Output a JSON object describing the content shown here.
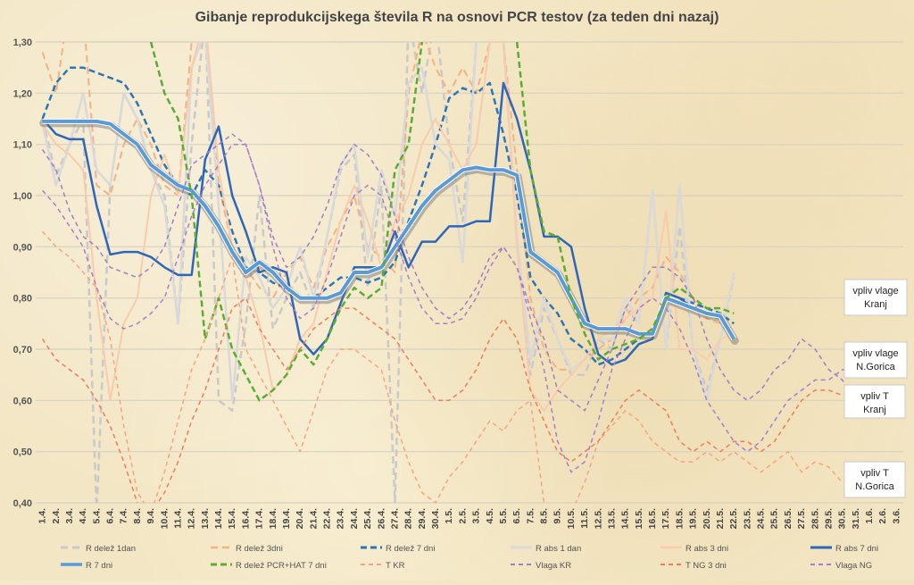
{
  "chart_data": {
    "type": "line",
    "title": "Gibanje reprodukcijskega števila R na osnovi PCR testov (za teden dni nazaj)",
    "xlabel": "",
    "ylabel": "",
    "ylim": [
      0.4,
      1.3
    ],
    "y_ticks": [
      "0,40",
      "0,50",
      "0,60",
      "0,70",
      "0,80",
      "0,90",
      "1,00",
      "1,10",
      "1,20",
      "1,30"
    ],
    "grid": true,
    "legend_position": "bottom",
    "categories": [
      "1.4.",
      "2.4.",
      "3.4.",
      "4.4.",
      "5.4.",
      "6.4.",
      "7.4.",
      "8.4.",
      "9.4.",
      "10.4.",
      "11.4.",
      "12.4.",
      "13.4.",
      "14.4.",
      "15.4.",
      "16.4.",
      "17.4.",
      "18.4.",
      "19.4.",
      "20.4.",
      "21.4.",
      "22.4.",
      "23.4.",
      "24.4.",
      "25.4.",
      "26.4.",
      "27.4.",
      "28.4.",
      "29.4.",
      "30.4.",
      "1.5.",
      "2.5.",
      "3.5.",
      "4.5.",
      "5.5.",
      "6.5.",
      "7.5.",
      "8.5.",
      "9.5.",
      "10.5.",
      "11.5.",
      "12.5.",
      "13.5.",
      "14.5.",
      "15.5.",
      "16.5.",
      "17.5.",
      "18.5.",
      "19.5.",
      "20.5.",
      "21.5.",
      "22.5.",
      "23.5.",
      "24.5.",
      "25.5.",
      "26.5.",
      "27.5.",
      "28.5.",
      "29.5.",
      "30.5.",
      "31.5.",
      "1.6.",
      "2.6.",
      "3.6."
    ],
    "series": [
      {
        "name": "R delež 1dan",
        "color": "#c9c9c9",
        "width": 2.5,
        "dash": "8,5",
        "values": [
          1.15,
          1.04,
          1.1,
          1.15,
          0.38,
          1.02,
          1.2,
          1.15,
          1.05,
          1.0,
          0.75,
          1.1,
          1.35,
          0.6,
          0.58,
          0.75,
          1.0,
          0.74,
          0.8,
          0.85,
          0.78,
          0.92,
          1.05,
          1.08,
          0.82,
          1.02,
          0.4,
          1.35,
          1.2,
          1.35,
          1.1,
          0.95,
          1.3,
          1.35,
          1.3,
          0.92,
          0.65,
          0.78,
          0.72,
          0.65,
          0.65,
          0.72,
          0.7,
          0.78,
          0.75,
          1.01,
          0.7,
          0.94,
          0.7,
          0.62,
          0.72,
          0.84,
          null,
          null,
          null,
          null,
          null,
          null,
          null,
          null,
          null,
          null,
          null,
          null
        ]
      },
      {
        "name": "R delež 3dni",
        "color": "#f4b183",
        "width": 2,
        "dash": "8,5",
        "values": [
          1.28,
          1.2,
          1.38,
          1.36,
          1.02,
          1.0,
          1.1,
          1.15,
          1.1,
          1.02,
          1.0,
          1.3,
          1.35,
          1.02,
          0.9,
          0.86,
          0.82,
          0.8,
          0.85,
          0.88,
          0.82,
          0.9,
          0.95,
          1.0,
          0.9,
          0.88,
          0.85,
          1.2,
          1.32,
          1.25,
          1.2,
          1.25,
          1.2,
          1.3,
          1.3,
          1.05,
          0.8,
          0.7,
          0.66,
          0.66,
          0.68,
          0.7,
          0.72,
          0.76,
          0.8,
          0.82,
          0.88,
          0.85,
          0.8,
          0.76,
          0.75,
          0.74,
          null,
          null,
          null,
          null,
          null,
          null,
          null,
          null,
          null,
          null,
          null,
          null
        ]
      },
      {
        "name": "R delež 7 dni",
        "color": "#2e75b6",
        "width": 2.5,
        "dash": "7,4",
        "values": [
          1.15,
          1.22,
          1.25,
          1.25,
          1.24,
          1.23,
          1.22,
          1.18,
          1.12,
          1.06,
          1.02,
          1.0,
          1.05,
          1.02,
          0.93,
          0.86,
          0.85,
          0.83,
          0.82,
          0.8,
          0.8,
          0.82,
          0.84,
          0.84,
          0.83,
          0.84,
          0.87,
          0.95,
          1.02,
          1.1,
          1.19,
          1.21,
          1.2,
          1.22,
          1.12,
          1.0,
          0.84,
          0.8,
          0.77,
          0.72,
          0.7,
          0.67,
          0.68,
          0.7,
          0.72,
          0.74,
          0.79,
          0.8,
          0.79,
          0.78,
          0.77,
          0.75,
          null,
          null,
          null,
          null,
          null,
          null,
          null,
          null,
          null,
          null,
          null,
          null
        ]
      },
      {
        "name": "R abs 1 dan",
        "color": "#d9d9d9",
        "width": 2.5,
        "dash": "",
        "values": [
          1.14,
          1.02,
          1.1,
          1.2,
          1.05,
          1.02,
          1.2,
          1.15,
          1.05,
          0.98,
          0.75,
          1.25,
          1.32,
          0.98,
          0.6,
          0.88,
          0.84,
          0.78,
          0.82,
          0.9,
          0.8,
          0.92,
          1.06,
          1.1,
          0.88,
          1.05,
          0.96,
          1.22,
          1.25,
          1.1,
          1.07,
          0.87,
          1.3,
          1.35,
          1.3,
          0.92,
          0.68,
          0.8,
          0.72,
          0.66,
          0.68,
          0.72,
          0.72,
          0.8,
          0.75,
          1.01,
          0.7,
          1.02,
          0.7,
          0.6,
          0.72,
          0.85,
          null,
          null,
          null,
          null,
          null,
          null,
          null,
          null,
          null,
          null,
          null,
          null
        ]
      },
      {
        "name": "R abs 3 dni",
        "color": "#f8cbad",
        "width": 2,
        "dash": "",
        "values": [
          1.14,
          1.1,
          1.08,
          1.05,
          0.8,
          0.6,
          0.75,
          0.8,
          1.0,
          1.08,
          1.0,
          1.25,
          1.35,
          1.05,
          0.9,
          0.84,
          0.75,
          0.62,
          0.65,
          0.72,
          0.75,
          0.85,
          0.95,
          1.02,
          0.95,
          0.86,
          0.95,
          1.0,
          1.1,
          1.15,
          1.1,
          1.05,
          1.1,
          1.3,
          1.3,
          0.9,
          0.62,
          0.58,
          0.62,
          0.65,
          0.68,
          0.72,
          0.74,
          0.76,
          0.78,
          0.8,
          0.97,
          0.7,
          0.7,
          0.68,
          0.72,
          0.73,
          null,
          null,
          null,
          null,
          null,
          null,
          null,
          null,
          null,
          null,
          null,
          null
        ]
      },
      {
        "name": "R abs 7 dni",
        "color": "#2e66b8",
        "width": 2.5,
        "dash": "",
        "values": [
          1.15,
          1.12,
          1.11,
          1.11,
          0.98,
          0.885,
          0.89,
          0.89,
          0.88,
          0.86,
          0.845,
          0.845,
          1.07,
          1.135,
          1.0,
          0.93,
          0.85,
          0.86,
          0.85,
          0.72,
          0.69,
          0.72,
          0.79,
          0.86,
          0.86,
          0.86,
          0.93,
          0.86,
          0.91,
          0.91,
          0.94,
          0.94,
          0.95,
          0.95,
          1.22,
          1.15,
          1.05,
          0.92,
          0.92,
          0.9,
          0.78,
          0.69,
          0.67,
          0.68,
          0.71,
          0.72,
          0.81,
          0.8,
          0.78,
          0.77,
          0.76,
          0.72,
          null,
          null,
          null,
          null,
          null,
          null,
          null,
          null,
          null,
          null,
          null,
          null
        ]
      },
      {
        "name": "R 7 dni",
        "color": "#5b9bd5",
        "width": 4,
        "dash": "",
        "values": [
          1.145,
          1.145,
          1.145,
          1.145,
          1.145,
          1.14,
          1.12,
          1.1,
          1.06,
          1.04,
          1.02,
          1.01,
          0.98,
          0.94,
          0.89,
          0.85,
          0.87,
          0.85,
          0.82,
          0.8,
          0.8,
          0.8,
          0.81,
          0.85,
          0.85,
          0.86,
          0.9,
          0.94,
          0.98,
          1.01,
          1.03,
          1.05,
          1.055,
          1.05,
          1.05,
          1.04,
          0.89,
          0.87,
          0.85,
          0.8,
          0.75,
          0.74,
          0.74,
          0.74,
          0.73,
          0.73,
          0.8,
          0.79,
          0.78,
          0.77,
          0.765,
          0.72,
          null,
          null,
          null,
          null,
          null,
          null,
          null,
          null,
          null,
          null,
          null,
          null
        ]
      },
      {
        "name": "R delež PCR+HAT 7 dni",
        "color": "#5aad32",
        "width": 2.5,
        "dash": "7,4",
        "values": [
          null,
          null,
          null,
          null,
          null,
          null,
          null,
          null,
          1.3,
          1.2,
          1.15,
          1.0,
          0.72,
          0.8,
          0.7,
          0.65,
          0.6,
          0.62,
          0.65,
          0.7,
          0.67,
          0.72,
          0.78,
          0.82,
          0.8,
          0.82,
          1.05,
          1.1,
          1.3,
          null,
          null,
          null,
          null,
          null,
          null,
          1.3,
          1.05,
          0.93,
          0.92,
          0.8,
          0.73,
          0.68,
          0.7,
          0.71,
          0.72,
          0.74,
          0.8,
          0.82,
          0.8,
          0.78,
          0.78,
          0.77,
          null,
          null,
          null,
          null,
          null,
          null,
          null,
          null,
          null,
          null,
          null,
          null
        ]
      },
      {
        "name": "T KR",
        "color": "#f4a582",
        "width": 1.5,
        "dash": "5,4",
        "values": [
          0.93,
          0.9,
          0.88,
          0.85,
          0.82,
          0.72,
          0.55,
          0.42,
          0.38,
          0.46,
          0.56,
          0.66,
          0.72,
          0.8,
          0.88,
          0.7,
          0.65,
          0.6,
          0.55,
          0.5,
          0.58,
          0.66,
          0.7,
          0.7,
          0.68,
          0.66,
          0.56,
          0.48,
          0.42,
          0.4,
          0.45,
          0.48,
          0.52,
          0.56,
          0.54,
          0.58,
          0.6,
          0.4,
          0.36,
          0.38,
          0.44,
          0.52,
          0.55,
          0.58,
          0.56,
          0.52,
          0.5,
          0.48,
          0.48,
          0.5,
          0.48,
          0.5,
          0.48,
          0.46,
          0.48,
          0.5,
          0.46,
          0.48,
          0.47,
          0.44,
          null,
          null,
          null,
          null
        ]
      },
      {
        "name": "Vlaga KR",
        "color": "#9e7fc6",
        "width": 1.5,
        "dash": "5,4",
        "values": [
          1.09,
          1.05,
          0.97,
          0.92,
          0.9,
          0.86,
          0.85,
          0.84,
          0.86,
          0.9,
          0.98,
          1.06,
          1.08,
          1.1,
          1.12,
          1.1,
          1.02,
          0.92,
          0.86,
          0.88,
          0.92,
          0.98,
          1.06,
          1.1,
          1.08,
          1.04,
          0.96,
          0.88,
          0.82,
          0.78,
          0.76,
          0.78,
          0.82,
          0.88,
          0.9,
          0.86,
          0.78,
          0.72,
          0.62,
          0.6,
          0.58,
          0.64,
          0.7,
          0.78,
          0.82,
          0.86,
          0.86,
          0.84,
          0.8,
          0.72,
          0.66,
          0.62,
          0.6,
          0.62,
          0.66,
          0.68,
          0.72,
          0.7,
          0.66,
          0.64,
          0.6,
          null,
          null,
          null
        ]
      },
      {
        "name": "T NG 3 dni",
        "color": "#ed7d5b",
        "width": 1.5,
        "dash": "5,4",
        "values": [
          0.72,
          0.68,
          0.66,
          0.64,
          0.6,
          0.55,
          0.48,
          0.4,
          0.38,
          0.42,
          0.48,
          0.56,
          0.62,
          0.7,
          0.78,
          0.8,
          0.74,
          0.7,
          0.66,
          0.7,
          0.74,
          0.76,
          0.78,
          0.78,
          0.76,
          0.74,
          0.72,
          0.68,
          0.64,
          0.6,
          0.6,
          0.62,
          0.66,
          0.72,
          0.76,
          0.72,
          0.62,
          0.56,
          0.5,
          0.48,
          0.5,
          0.52,
          0.56,
          0.6,
          0.62,
          0.6,
          0.58,
          0.52,
          0.5,
          0.52,
          0.5,
          0.52,
          0.52,
          0.5,
          0.52,
          0.56,
          0.6,
          0.62,
          0.62,
          0.61,
          null,
          null,
          null,
          null
        ]
      },
      {
        "name": "Vlaga NG",
        "color": "#a67fc9",
        "width": 1.5,
        "dash": "5,4",
        "values": [
          1.01,
          0.98,
          0.94,
          0.9,
          0.82,
          0.76,
          0.74,
          0.75,
          0.77,
          0.8,
          0.88,
          0.96,
          1.02,
          1.06,
          1.1,
          1.1,
          1.02,
          0.9,
          0.8,
          0.76,
          0.78,
          0.84,
          0.92,
          1.0,
          1.02,
          1.0,
          0.92,
          0.84,
          0.78,
          0.75,
          0.75,
          0.76,
          0.8,
          0.86,
          0.9,
          0.86,
          0.76,
          0.66,
          0.52,
          0.46,
          0.48,
          0.56,
          0.66,
          0.72,
          0.78,
          0.8,
          0.78,
          0.74,
          0.68,
          0.6,
          0.56,
          0.52,
          0.5,
          0.52,
          0.56,
          0.6,
          0.62,
          0.64,
          0.64,
          0.66,
          0.66,
          null,
          null,
          null
        ]
      }
    ],
    "annotations": [
      {
        "label_lines": [
          "vpliv vlage",
          "Kranj"
        ]
      },
      {
        "label_lines": [
          "vpliv vlage",
          "N.Gorica"
        ]
      },
      {
        "label_lines": [
          "vpliv T",
          "Kranj"
        ]
      },
      {
        "label_lines": [
          "vpliv T",
          "N.Gorica"
        ]
      }
    ]
  }
}
